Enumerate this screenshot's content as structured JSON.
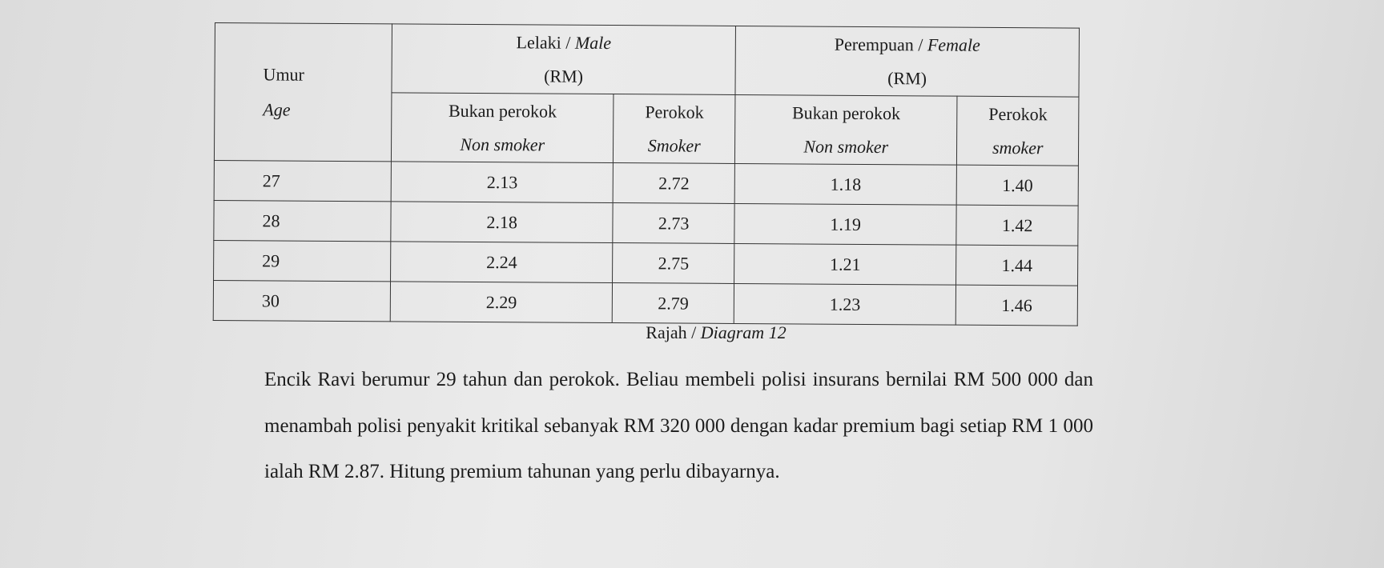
{
  "table": {
    "age_header": {
      "ms": "Umur",
      "en": "Age"
    },
    "male_header": {
      "ms": "Lelaki",
      "en": "Male",
      "unit": "(RM)"
    },
    "female_header": {
      "ms": "Perempuan",
      "en": "Female",
      "unit": "(RM)"
    },
    "sub_headers": [
      {
        "ms": "Bukan perokok",
        "en": "Non smoker"
      },
      {
        "ms": "Perokok",
        "en": "Smoker"
      },
      {
        "ms": "Bukan perokok",
        "en": "Non smoker"
      },
      {
        "ms": "Perokok",
        "en": "smoker"
      }
    ],
    "rows": [
      {
        "age": "27",
        "male_non_smoker": "2.13",
        "male_smoker": "2.72",
        "female_non_smoker": "1.18",
        "female_smoker": "1.40"
      },
      {
        "age": "28",
        "male_non_smoker": "2.18",
        "male_smoker": "2.73",
        "female_non_smoker": "1.19",
        "female_smoker": "1.42"
      },
      {
        "age": "29",
        "male_non_smoker": "2.24",
        "male_smoker": "2.75",
        "female_non_smoker": "1.21",
        "female_smoker": "1.44"
      },
      {
        "age": "30",
        "male_non_smoker": "2.29",
        "male_smoker": "2.79",
        "female_non_smoker": "1.23",
        "female_smoker": "1.46"
      }
    ]
  },
  "caption": {
    "ms": "Rajah",
    "en": "Diagram 12"
  },
  "question": "Encik Ravi berumur 29 tahun dan perokok. Beliau membeli polisi insurans bernilai RM 500 000 dan menambah polisi penyakit kritikal sebanyak RM 320 000 dengan kadar premium bagi setiap RM 1 000 ialah RM 2.87. Hitung premium tahunan yang perlu dibayarnya."
}
